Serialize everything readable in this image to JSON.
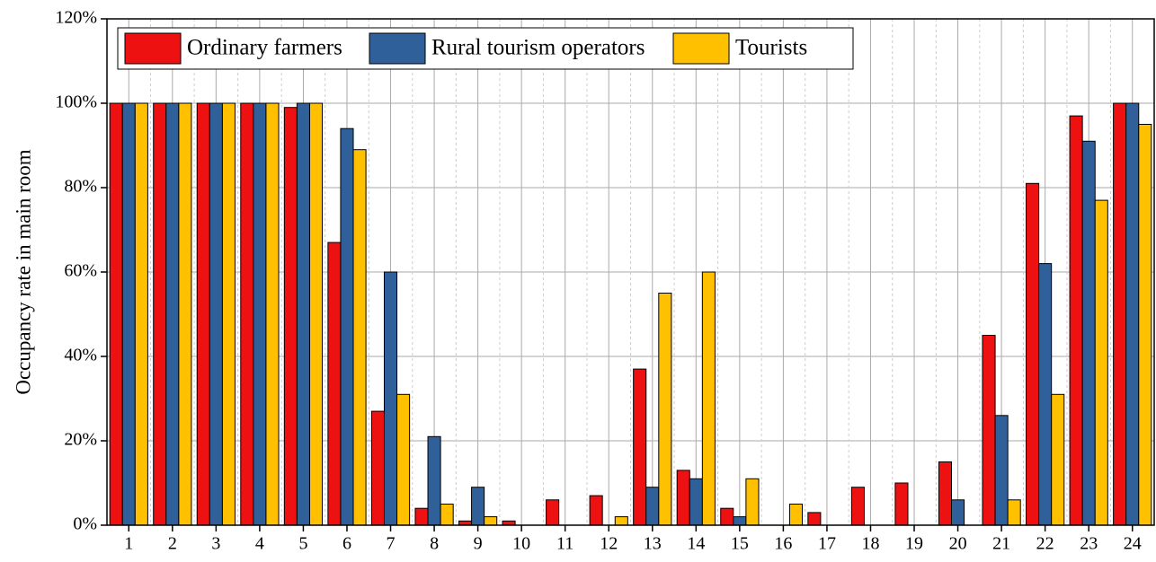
{
  "chart_data": {
    "type": "bar",
    "y_label": "Occupancy rate in main room",
    "categories": [
      "1",
      "2",
      "3",
      "4",
      "5",
      "6",
      "7",
      "8",
      "9",
      "10",
      "11",
      "12",
      "13",
      "14",
      "15",
      "16",
      "17",
      "18",
      "19",
      "20",
      "21",
      "22",
      "23",
      "24"
    ],
    "series": [
      {
        "name": "Ordinary farmers",
        "color": "#ee1111",
        "values": [
          100,
          100,
          100,
          100,
          99,
          67,
          27,
          4,
          1,
          1,
          6,
          7,
          37,
          13,
          4,
          0,
          3,
          9,
          10,
          15,
          45,
          81,
          97,
          100
        ]
      },
      {
        "name": "Rural tourism operators",
        "color": "#30609a",
        "values": [
          100,
          100,
          100,
          100,
          100,
          94,
          60,
          21,
          9,
          0,
          0,
          0,
          9,
          11,
          2,
          0,
          0,
          0,
          0,
          6,
          26,
          62,
          91,
          100
        ]
      },
      {
        "name": "Tourists",
        "color": "#ffc000",
        "values": [
          100,
          100,
          100,
          100,
          100,
          89,
          31,
          5,
          2,
          0,
          0,
          2,
          55,
          60,
          11,
          5,
          0,
          0,
          0,
          0,
          6,
          31,
          77,
          95
        ]
      }
    ],
    "ylim": [
      0,
      120
    ],
    "yticks": [
      {
        "value": 0,
        "label": "0%"
      },
      {
        "value": 20,
        "label": "20%"
      },
      {
        "value": 40,
        "label": "40%"
      },
      {
        "value": 60,
        "label": "60%"
      },
      {
        "value": 80,
        "label": "80%"
      },
      {
        "value": 100,
        "label": "100%"
      },
      {
        "value": 120,
        "label": "120%"
      }
    ],
    "grid": true,
    "legend": "upper left"
  }
}
